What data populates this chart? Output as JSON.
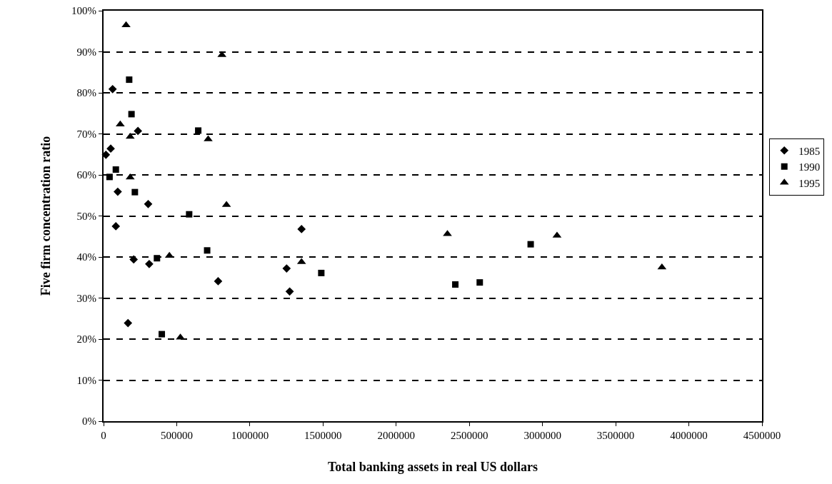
{
  "chart_data": {
    "type": "scatter",
    "xlabel": "Total banking assets in real US dollars",
    "ylabel": "Five firm concentration ratio",
    "xlim": [
      0,
      4500000
    ],
    "xticks": [
      0,
      500000,
      1000000,
      1500000,
      2000000,
      2500000,
      3000000,
      3500000,
      4000000,
      4500000
    ],
    "ylim": [
      0,
      100
    ],
    "yticks": [
      {
        "value": 0,
        "label": "0%"
      },
      {
        "value": 10,
        "label": "10%"
      },
      {
        "value": 20,
        "label": "20%"
      },
      {
        "value": 30,
        "label": "30%"
      },
      {
        "value": 40,
        "label": "40%"
      },
      {
        "value": 50,
        "label": "50%"
      },
      {
        "value": 60,
        "label": "60%"
      },
      {
        "value": 70,
        "label": "70%"
      },
      {
        "value": 80,
        "label": "80%"
      },
      {
        "value": 90,
        "label": "90%"
      },
      {
        "value": 100,
        "label": "100%"
      }
    ],
    "grid": "y",
    "legend": "right",
    "series": [
      {
        "name": "1985",
        "color": "#000000",
        "marker": "diamond",
        "x": [
          62000,
          235000,
          49000,
          16000,
          97000,
          305000,
          84000,
          1353000,
          206000,
          312000,
          1251000,
          783000,
          1272000,
          167000
        ],
        "values": [
          80.9,
          70.7,
          66.4,
          64.9,
          55.9,
          52.9,
          47.5,
          46.8,
          39.4,
          38.3,
          37.2,
          34.1,
          31.6,
          23.9
        ]
      },
      {
        "name": "1990",
        "color": "#000000",
        "marker": "square",
        "x": [
          175000,
          191000,
          647000,
          84000,
          41000,
          214000,
          585000,
          708000,
          365000,
          398000,
          2919000,
          1488000,
          2404000,
          2571000
        ],
        "values": [
          83.2,
          74.8,
          70.8,
          61.3,
          59.5,
          55.8,
          50.4,
          41.6,
          39.7,
          21.2,
          43.1,
          36.1,
          33.3,
          33.8
        ]
      },
      {
        "name": "1995",
        "color": "#000000",
        "marker": "triangle",
        "x": [
          154000,
          809000,
          114000,
          182000,
          715000,
          182000,
          840000,
          450000,
          1353000,
          525000,
          2350000,
          3099000,
          3816000
        ],
        "values": [
          96.5,
          89.2,
          72.3,
          69.3,
          68.7,
          59.4,
          52.7,
          40.3,
          38.8,
          20.4,
          45.6,
          45.2,
          37.5
        ]
      }
    ]
  }
}
